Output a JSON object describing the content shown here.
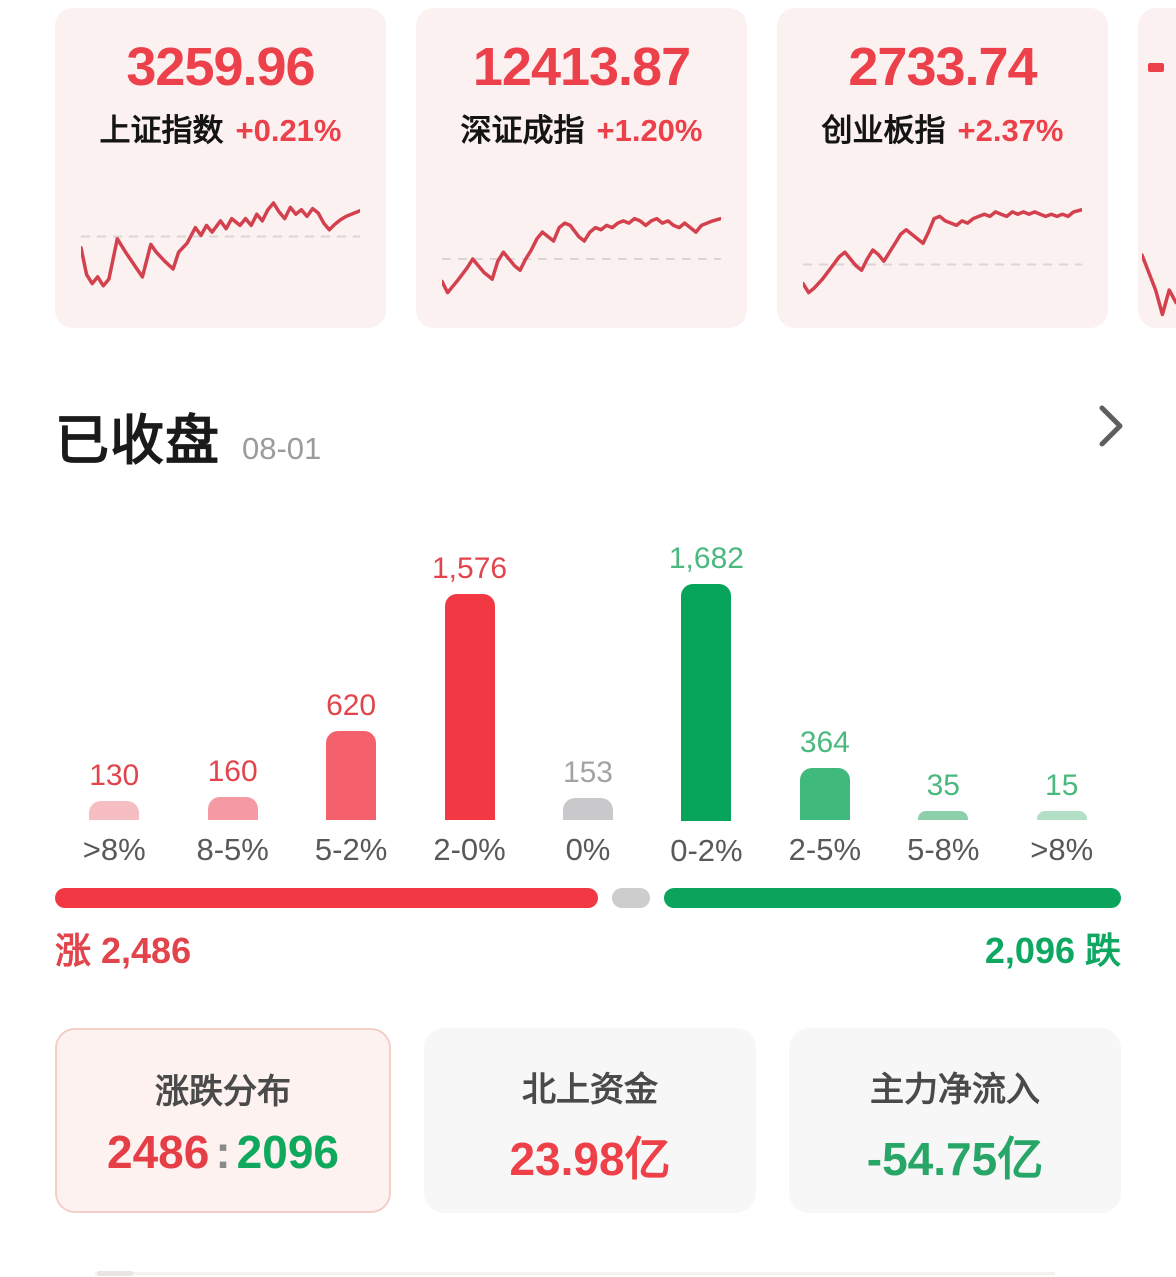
{
  "palette": {
    "index_red": "#EC414B",
    "sparkline_red": "#D4414E",
    "baseline_gray": "#DDD5D5",
    "up_red": "#F23843",
    "down_green": "#0AA45C",
    "flat_gray": "#CDCDCE",
    "card_pink_bg": "#FBF1F0",
    "stat_gray_bg": "#F7F7F8",
    "stat_active_bg": "#FDF2EF",
    "stat_active_border": "#F3CFC7"
  },
  "index_cards": [
    {
      "value": "3259.96",
      "name": "上证指数",
      "change": "+0.21%"
    },
    {
      "value": "12413.87",
      "name": "深证成指",
      "change": "+1.20%"
    },
    {
      "value": "2733.74",
      "name": "创业板指",
      "change": "+2.37%"
    }
  ],
  "section": {
    "title": "已收盘",
    "date": "08-01",
    "chevron_icon": "chevron-right"
  },
  "chart_data": [
    {
      "type": "bar",
      "title": "涨跌分布",
      "categories": [
        ">8%",
        "8-5%",
        "5-2%",
        "2-0%",
        "0%",
        "0-2%",
        "2-5%",
        "5-8%",
        ">8%"
      ],
      "values": [
        130,
        160,
        620,
        1576,
        153,
        1682,
        364,
        35,
        15
      ],
      "value_labels": [
        "130",
        "160",
        "620",
        "1,576",
        "153",
        "1,682",
        "364",
        "35",
        "15"
      ],
      "groups": [
        "up",
        "up",
        "up",
        "up",
        "flat",
        "down",
        "down",
        "down",
        "down"
      ],
      "bar_colors": [
        "#F6BDC2",
        "#F59AA3",
        "#F4606B",
        "#F23843",
        "#C9C9CB",
        "#07A45B",
        "#3FB97C",
        "#8BD0A9",
        "#B2DFC6"
      ],
      "label_colors": [
        "#E2444C",
        "#E2444C",
        "#E2444C",
        "#E2444C",
        "#A3A3A3",
        "#4AB97E",
        "#4AB97E",
        "#4AB97E",
        "#4AB97E"
      ],
      "xlabel": "",
      "ylabel": "",
      "ylim": [
        0,
        1682
      ],
      "grid": false,
      "legend": "none"
    },
    {
      "type": "line",
      "name": "shanghai-sparkline",
      "color": "#D4414E",
      "baseline_pct": 38,
      "points": [
        [
          0,
          48
        ],
        [
          2,
          72
        ],
        [
          4,
          80
        ],
        [
          6,
          74
        ],
        [
          8,
          82
        ],
        [
          10,
          76
        ],
        [
          13,
          40
        ],
        [
          16,
          52
        ],
        [
          19,
          63
        ],
        [
          22,
          74
        ],
        [
          25,
          45
        ],
        [
          27,
          52
        ],
        [
          30,
          60
        ],
        [
          33,
          67
        ],
        [
          35,
          52
        ],
        [
          38,
          44
        ],
        [
          41,
          30
        ],
        [
          43,
          37
        ],
        [
          45,
          28
        ],
        [
          47,
          34
        ],
        [
          50,
          24
        ],
        [
          52,
          31
        ],
        [
          54,
          22
        ],
        [
          57,
          28
        ],
        [
          59,
          22
        ],
        [
          61,
          28
        ],
        [
          63,
          18
        ],
        [
          65,
          24
        ],
        [
          67,
          14
        ],
        [
          69,
          8
        ],
        [
          71,
          16
        ],
        [
          73,
          22
        ],
        [
          75,
          12
        ],
        [
          77,
          18
        ],
        [
          79,
          14
        ],
        [
          81,
          20
        ],
        [
          83,
          13
        ],
        [
          85,
          17
        ],
        [
          87,
          26
        ],
        [
          89,
          32
        ],
        [
          91,
          27
        ],
        [
          93,
          23
        ],
        [
          95,
          20
        ],
        [
          98,
          17
        ],
        [
          100,
          15
        ]
      ]
    },
    {
      "type": "line",
      "name": "shenzhen-sparkline",
      "color": "#D4414E",
      "baseline_pct": 58,
      "points": [
        [
          0,
          78
        ],
        [
          2,
          88
        ],
        [
          4,
          82
        ],
        [
          6,
          76
        ],
        [
          9,
          66
        ],
        [
          11,
          58
        ],
        [
          13,
          64
        ],
        [
          15,
          70
        ],
        [
          18,
          76
        ],
        [
          20,
          60
        ],
        [
          22,
          52
        ],
        [
          24,
          58
        ],
        [
          26,
          64
        ],
        [
          28,
          68
        ],
        [
          30,
          58
        ],
        [
          32,
          50
        ],
        [
          34,
          40
        ],
        [
          36,
          34
        ],
        [
          38,
          38
        ],
        [
          40,
          42
        ],
        [
          42,
          30
        ],
        [
          44,
          26
        ],
        [
          46,
          28
        ],
        [
          49,
          38
        ],
        [
          51,
          42
        ],
        [
          53,
          34
        ],
        [
          55,
          30
        ],
        [
          57,
          32
        ],
        [
          59,
          28
        ],
        [
          61,
          30
        ],
        [
          63,
          26
        ],
        [
          65,
          24
        ],
        [
          67,
          26
        ],
        [
          69,
          22
        ],
        [
          71,
          24
        ],
        [
          73,
          28
        ],
        [
          75,
          24
        ],
        [
          77,
          22
        ],
        [
          79,
          26
        ],
        [
          81,
          24
        ],
        [
          83,
          28
        ],
        [
          85,
          30
        ],
        [
          87,
          26
        ],
        [
          89,
          30
        ],
        [
          91,
          34
        ],
        [
          93,
          28
        ],
        [
          95,
          26
        ],
        [
          97,
          24
        ],
        [
          100,
          22
        ]
      ]
    },
    {
      "type": "line",
      "name": "chinext-sparkline",
      "color": "#D4414E",
      "baseline_pct": 63,
      "points": [
        [
          0,
          80
        ],
        [
          2,
          88
        ],
        [
          4,
          84
        ],
        [
          7,
          76
        ],
        [
          10,
          66
        ],
        [
          13,
          56
        ],
        [
          15,
          52
        ],
        [
          17,
          58
        ],
        [
          19,
          64
        ],
        [
          21,
          68
        ],
        [
          23,
          58
        ],
        [
          25,
          50
        ],
        [
          27,
          54
        ],
        [
          29,
          60
        ],
        [
          31,
          52
        ],
        [
          33,
          44
        ],
        [
          35,
          36
        ],
        [
          37,
          32
        ],
        [
          39,
          36
        ],
        [
          41,
          40
        ],
        [
          43,
          44
        ],
        [
          45,
          34
        ],
        [
          47,
          22
        ],
        [
          49,
          20
        ],
        [
          51,
          24
        ],
        [
          53,
          26
        ],
        [
          55,
          28
        ],
        [
          57,
          24
        ],
        [
          59,
          26
        ],
        [
          61,
          22
        ],
        [
          63,
          20
        ],
        [
          65,
          18
        ],
        [
          67,
          20
        ],
        [
          69,
          16
        ],
        [
          71,
          18
        ],
        [
          73,
          20
        ],
        [
          75,
          16
        ],
        [
          77,
          18
        ],
        [
          79,
          16
        ],
        [
          81,
          18
        ],
        [
          83,
          16
        ],
        [
          85,
          18
        ],
        [
          87,
          20
        ],
        [
          89,
          18
        ],
        [
          91,
          20
        ],
        [
          93,
          18
        ],
        [
          95,
          20
        ],
        [
          97,
          16
        ],
        [
          100,
          14
        ]
      ]
    },
    {
      "type": "line",
      "name": "clipped-sparkline",
      "color": "#D4414E",
      "baseline_pct": null,
      "points": [
        [
          0,
          10
        ],
        [
          40,
          60
        ],
        [
          60,
          95
        ],
        [
          80,
          60
        ],
        [
          100,
          78
        ]
      ]
    }
  ],
  "ratio_bar": {
    "up_count": 2486,
    "down_count": 2096,
    "up_label": "涨 2,486",
    "down_label": "2,096 跌"
  },
  "stat_cards": [
    {
      "title": "涨跌分布",
      "value_up": "2486",
      "value_sep": ":",
      "value_down": "2096"
    },
    {
      "title": "北上资金",
      "value": "23.98亿"
    },
    {
      "title": "主力净流入",
      "value": "-54.75亿"
    }
  ]
}
